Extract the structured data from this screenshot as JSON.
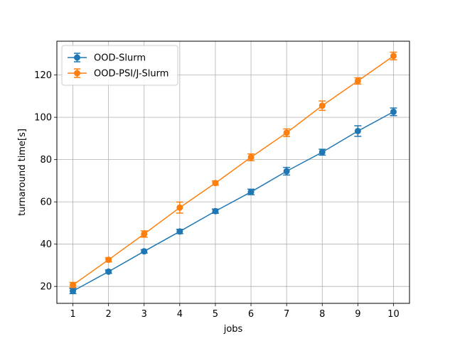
{
  "chart_data": {
    "type": "line",
    "xlabel": "jobs",
    "ylabel": "turnaround time[s]",
    "xlim": [
      0.55,
      10.45
    ],
    "ylim": [
      12,
      136
    ],
    "x": [
      1,
      2,
      3,
      4,
      5,
      6,
      7,
      8,
      9,
      10
    ],
    "xticks": [
      "1",
      "2",
      "3",
      "4",
      "5",
      "6",
      "7",
      "8",
      "9",
      "10"
    ],
    "yticks": [
      20,
      40,
      60,
      80,
      100,
      120
    ],
    "grid": true,
    "legend_location": "upper-left",
    "series": [
      {
        "name": "OOD-Slurm",
        "color": "#1f77b4",
        "marker": "circle",
        "values": [
          17.8,
          27.0,
          36.6,
          46.0,
          55.6,
          64.7,
          74.5,
          83.5,
          93.5,
          102.6
        ],
        "errors": [
          1.2,
          0.8,
          0.8,
          1.0,
          1.0,
          1.3,
          1.8,
          1.4,
          2.5,
          1.8
        ]
      },
      {
        "name": "OOD-PSI/J-Slurm",
        "color": "#ff7f0e",
        "marker": "circle",
        "values": [
          20.7,
          32.6,
          44.8,
          57.3,
          68.9,
          81.1,
          92.7,
          105.5,
          117.2,
          129.0
        ],
        "errors": [
          1.2,
          1.0,
          1.5,
          2.6,
          1.0,
          1.6,
          1.8,
          2.2,
          1.5,
          1.8
        ]
      }
    ]
  }
}
